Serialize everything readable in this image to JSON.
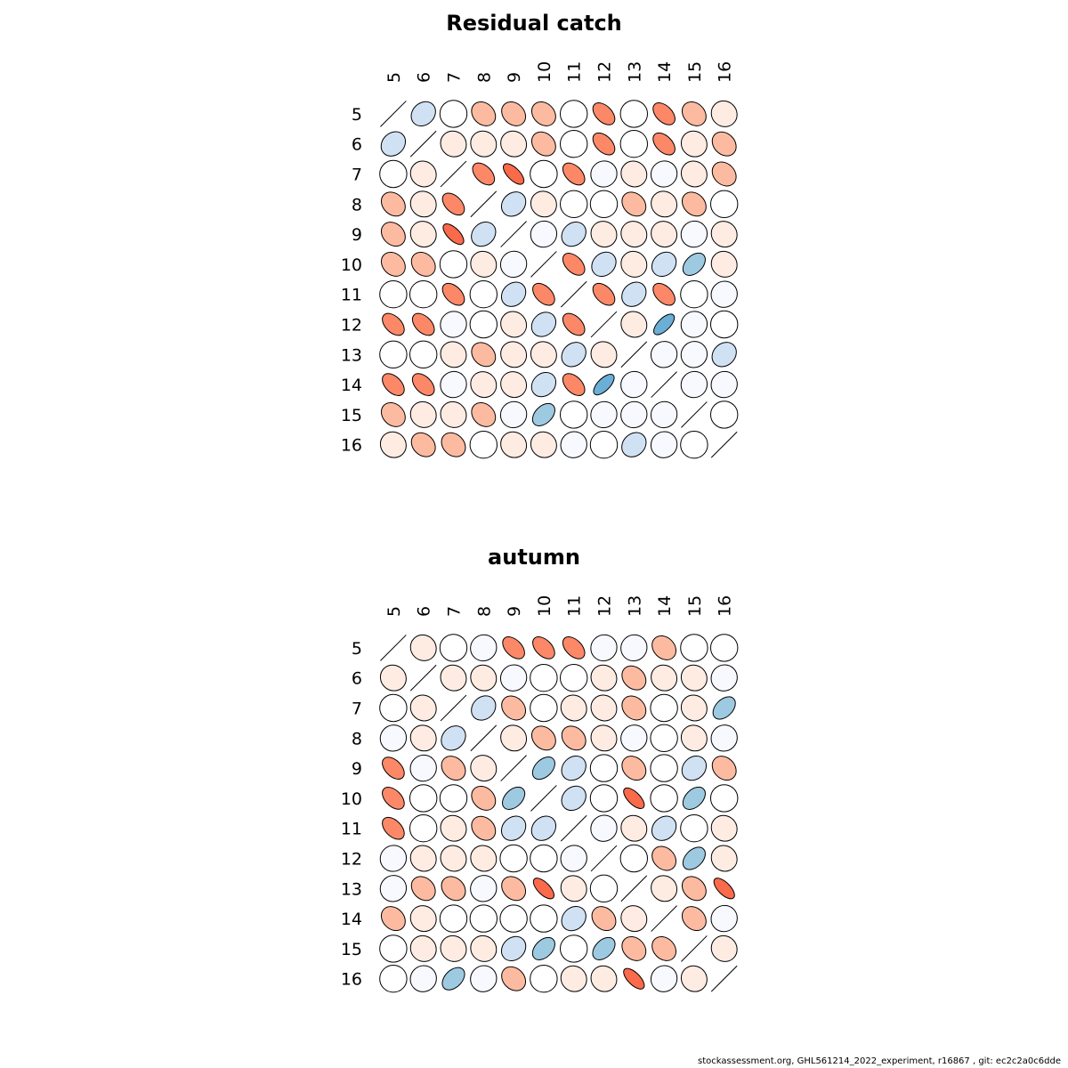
{
  "footer": "stockassessment.org, GHL561214_2022_experiment, r16867 , git: ec2c2a0c6dde",
  "chart_data": [
    {
      "type": "correlation-ellipse-matrix",
      "title": "Residual catch",
      "labels": [
        "5",
        "6",
        "7",
        "8",
        "9",
        "10",
        "11",
        "12",
        "13",
        "14",
        "15",
        "16"
      ],
      "matrix": [
        [
          1,
          0.35,
          0.0,
          -0.4,
          -0.4,
          -0.4,
          0.0,
          -0.65,
          0.0,
          -0.65,
          -0.4,
          -0.15
        ],
        [
          0.35,
          1,
          -0.15,
          -0.15,
          -0.15,
          -0.4,
          0.0,
          -0.65,
          0.0,
          -0.65,
          -0.15,
          -0.4
        ],
        [
          0.0,
          -0.15,
          1,
          -0.65,
          -0.8,
          0.0,
          -0.65,
          0.1,
          -0.15,
          0.1,
          -0.15,
          -0.4
        ],
        [
          -0.4,
          -0.15,
          -0.65,
          1,
          0.35,
          -0.15,
          0.0,
          0.0,
          -0.4,
          -0.15,
          -0.4,
          0.0
        ],
        [
          -0.4,
          -0.15,
          -0.8,
          0.35,
          1,
          0.1,
          0.35,
          -0.15,
          -0.15,
          -0.15,
          0.1,
          -0.15
        ],
        [
          -0.4,
          -0.4,
          0.0,
          -0.15,
          0.1,
          1,
          -0.65,
          0.35,
          -0.15,
          0.35,
          0.6,
          -0.15
        ],
        [
          0.0,
          0.0,
          -0.65,
          0.0,
          0.35,
          -0.65,
          1,
          -0.65,
          0.35,
          -0.65,
          0.0,
          0.1
        ],
        [
          -0.65,
          -0.65,
          0.1,
          0.0,
          -0.15,
          0.35,
          -0.65,
          1,
          -0.15,
          0.8,
          0.1,
          0.0
        ],
        [
          0.0,
          0.0,
          -0.15,
          -0.4,
          -0.15,
          -0.15,
          0.35,
          -0.15,
          1,
          0.1,
          0.1,
          0.35
        ],
        [
          -0.65,
          -0.65,
          0.1,
          -0.15,
          -0.15,
          0.35,
          -0.65,
          0.8,
          0.1,
          1,
          0.1,
          0.1
        ],
        [
          -0.4,
          -0.15,
          -0.15,
          -0.4,
          0.1,
          0.6,
          0.0,
          0.1,
          0.1,
          0.1,
          1,
          0.0
        ],
        [
          -0.15,
          -0.4,
          -0.4,
          0.0,
          -0.15,
          -0.15,
          0.1,
          0.0,
          0.35,
          0.1,
          0.0,
          1
        ]
      ]
    },
    {
      "type": "correlation-ellipse-matrix",
      "title": "autumn",
      "labels": [
        "5",
        "6",
        "7",
        "8",
        "9",
        "10",
        "11",
        "12",
        "13",
        "14",
        "15",
        "16"
      ],
      "matrix": [
        [
          1,
          -0.15,
          0.0,
          0.1,
          -0.65,
          -0.65,
          -0.65,
          0.1,
          0.1,
          -0.4,
          0.0,
          0.0
        ],
        [
          -0.15,
          1,
          -0.15,
          -0.15,
          0.1,
          0.0,
          0.0,
          -0.15,
          -0.4,
          -0.15,
          -0.15,
          0.1
        ],
        [
          0.0,
          -0.15,
          1,
          0.35,
          -0.4,
          0.0,
          -0.15,
          -0.15,
          -0.4,
          0.0,
          -0.15,
          0.6
        ],
        [
          0.1,
          -0.15,
          0.35,
          1,
          -0.15,
          -0.4,
          -0.4,
          -0.15,
          0.1,
          0.0,
          -0.15,
          0.1
        ],
        [
          -0.65,
          0.1,
          -0.4,
          -0.15,
          1,
          0.6,
          0.35,
          0.0,
          -0.4,
          0.0,
          0.35,
          -0.4
        ],
        [
          -0.65,
          0.0,
          0.0,
          -0.4,
          0.6,
          1,
          0.35,
          0.0,
          -0.8,
          0.0,
          0.6,
          0.0
        ],
        [
          -0.65,
          0.0,
          -0.15,
          -0.4,
          0.35,
          0.35,
          1,
          0.1,
          -0.15,
          0.35,
          0.0,
          -0.15
        ],
        [
          0.1,
          -0.15,
          -0.15,
          -0.15,
          0.0,
          0.0,
          0.1,
          1,
          0.0,
          -0.4,
          0.6,
          -0.15
        ],
        [
          0.1,
          -0.4,
          -0.4,
          0.1,
          -0.4,
          -0.8,
          -0.15,
          0.0,
          1,
          -0.15,
          -0.4,
          -0.8
        ],
        [
          -0.4,
          -0.15,
          0.0,
          0.0,
          0.0,
          0.0,
          0.35,
          -0.4,
          -0.15,
          1,
          -0.4,
          0.1
        ],
        [
          0.0,
          -0.15,
          -0.15,
          -0.15,
          0.35,
          0.6,
          0.0,
          0.6,
          -0.4,
          -0.4,
          1,
          -0.15
        ],
        [
          0.0,
          0.1,
          0.6,
          0.1,
          -0.4,
          0.0,
          -0.15,
          -0.15,
          -0.8,
          0.1,
          -0.15,
          1
        ]
      ]
    }
  ]
}
